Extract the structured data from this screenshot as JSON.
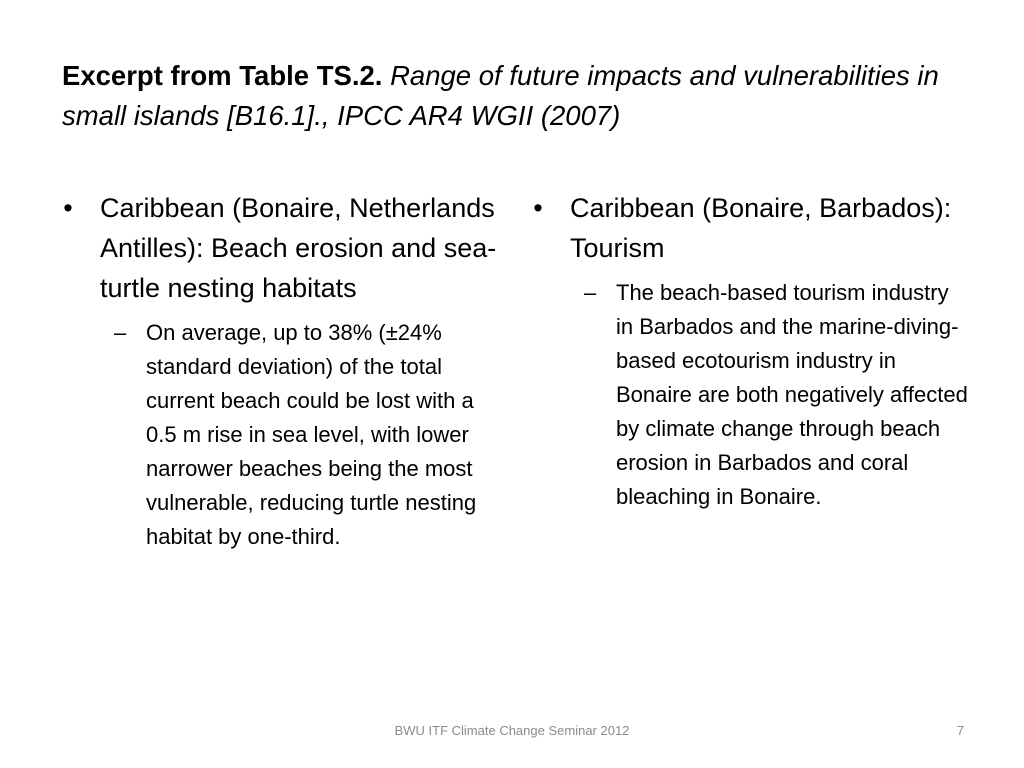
{
  "slide": {
    "title_bold": "Excerpt from Table TS.2.",
    "title_italic": "Range of future impacts and vulnerabilities in small islands [B16.1]., IPCC AR4 WGII (2007)",
    "columns": [
      {
        "bullet_marker": "•",
        "bullet": "Caribbean (Bonaire, Netherlands Antilles): Beach erosion and sea-turtle nesting habitats",
        "sub_marker": "–",
        "sub": "On average, up to 38% (±24% standard deviation) of the total current beach could be lost with a 0.5 m rise in sea level, with lower narrower beaches being the most vulnerable, reducing turtle nesting habitat by one-third."
      },
      {
        "bullet_marker": "•",
        "bullet": "Caribbean (Bonaire, Barbados): Tourism",
        "sub_marker": "–",
        "sub": "The beach-based tourism industry in Barbados and the marine-diving-based ecotourism industry in Bonaire are both negatively affected by climate change through beach erosion in Barbados and coral bleaching in Bonaire."
      }
    ],
    "footer": "BWU ITF Climate Change Seminar 2012",
    "page_number": "7"
  }
}
